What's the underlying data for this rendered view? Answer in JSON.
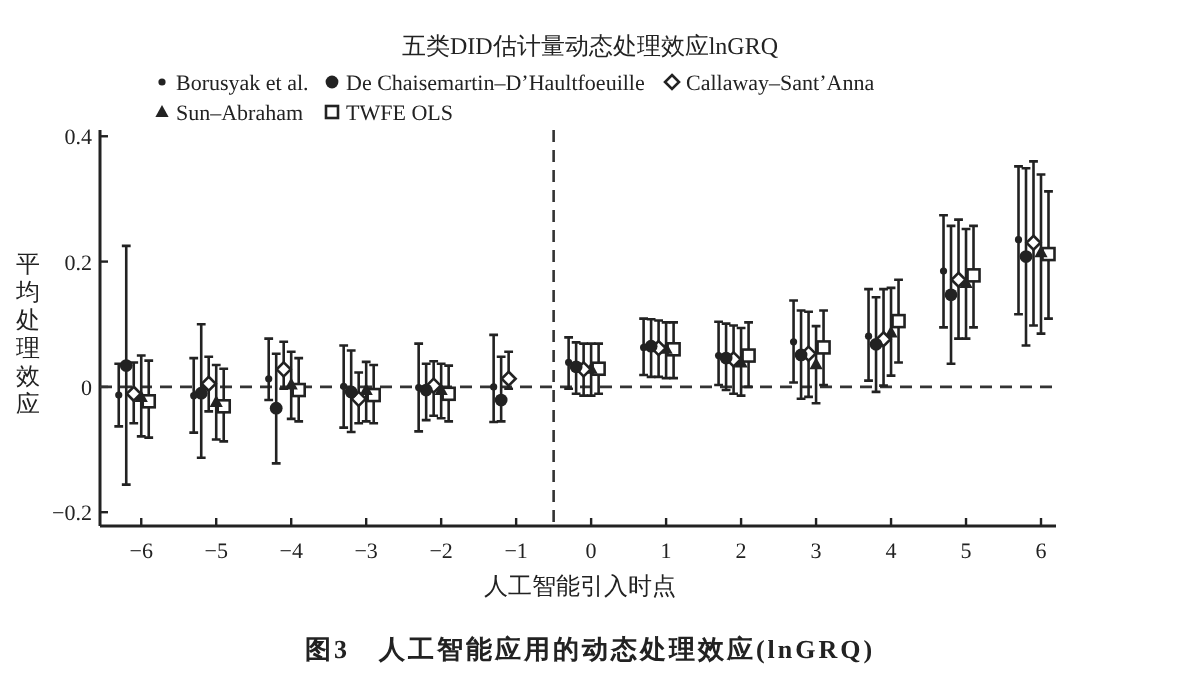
{
  "chart_data": {
    "type": "scatter",
    "title": "五类DID估计量动态处理效应lnGRQ",
    "xlabel": "人工智能引入时点",
    "ylabel": "平均处理效应",
    "annotations": [
      "图3　人工智能应用的动态处理效应(lnGRQ)"
    ],
    "xlim": [
      -6.55,
      6.2
    ],
    "xticks": [
      -6,
      -5,
      -4,
      -3,
      -2,
      -1,
      0,
      1,
      2,
      3,
      4,
      5,
      6
    ],
    "ylim": [
      -0.222,
      0.41
    ],
    "yticks": [
      -0.2,
      0,
      0.2,
      0.4
    ],
    "legend": "top",
    "ref_lines": [
      {
        "axis": "y",
        "value": 0,
        "line_style": "dashed"
      },
      {
        "axis": "x",
        "value": -0.5,
        "line_style": "dashed"
      }
    ],
    "series": [
      {
        "name": "Borusyak et al.",
        "color": "#222222",
        "marker": "dot",
        "x": [
          -6.3,
          -5.3,
          -4.3,
          -3.3,
          -2.3,
          -1.3,
          -0.3,
          0.7,
          1.7,
          2.7,
          3.7,
          4.7,
          5.7
        ],
        "values": [
          -0.013,
          -0.014,
          0.013,
          0.001,
          -0.001,
          0,
          0.039,
          0.063,
          0.05,
          0.072,
          0.081,
          0.185,
          0.235
        ],
        "errors": [
          [
            -0.063,
            0.037
          ],
          [
            -0.073,
            0.046
          ],
          [
            -0.021,
            0.077
          ],
          [
            -0.065,
            0.066
          ],
          [
            -0.071,
            0.069
          ],
          [
            -0.056,
            0.083
          ],
          [
            -0.003,
            0.079
          ],
          [
            0.019,
            0.109
          ],
          [
            0.003,
            0.104
          ],
          [
            0.007,
            0.138
          ],
          [
            0.01,
            0.156
          ],
          [
            0.095,
            0.274
          ],
          [
            0.116,
            0.352
          ]
        ]
      },
      {
        "name": "De Chaisemartin–D’Haultfoeuille",
        "color": "#222222",
        "marker": "circle",
        "x": [
          -6.2,
          -5.2,
          -4.2,
          -3.2,
          -2.2,
          -1.2,
          -0.2,
          0.8,
          1.8,
          2.8,
          3.8,
          4.8,
          5.8
        ],
        "values": [
          0.034,
          -0.01,
          -0.034,
          -0.008,
          -0.005,
          -0.021,
          0.032,
          0.065,
          0.046,
          0.051,
          0.068,
          0.147,
          0.208
        ],
        "errors": [
          [
            -0.156,
            0.225
          ],
          [
            -0.113,
            0.1
          ],
          [
            -0.122,
            0.053
          ],
          [
            -0.072,
            0.058
          ],
          [
            -0.053,
            0.037
          ],
          [
            -0.055,
            0.048
          ],
          [
            -0.011,
            0.071
          ],
          [
            0.016,
            0.108
          ],
          [
            -0.005,
            0.101
          ],
          [
            -0.019,
            0.122
          ],
          [
            -0.008,
            0.143
          ],
          [
            0.037,
            0.257
          ],
          [
            0.066,
            0.349
          ]
        ]
      },
      {
        "name": "Callaway–Sant’Anna",
        "color": "#222222",
        "marker": "diamond",
        "x": [
          -6.1,
          -5.1,
          -4.1,
          -3.1,
          -2.1,
          -1.1,
          -0.1,
          0.9,
          1.9,
          2.9,
          3.9,
          4.9,
          5.9
        ],
        "values": [
          -0.011,
          0.005,
          0.028,
          -0.019,
          0.002,
          0.013,
          0.028,
          0.062,
          0.044,
          0.053,
          0.076,
          0.171,
          0.23
        ],
        "errors": [
          [
            -0.058,
            0.039
          ],
          [
            -0.039,
            0.048
          ],
          [
            -0.003,
            0.072
          ],
          [
            -0.058,
            0.023
          ],
          [
            -0.046,
            0.041
          ],
          [
            -0.003,
            0.056
          ],
          [
            -0.014,
            0.069
          ],
          [
            0.016,
            0.106
          ],
          [
            -0.011,
            0.098
          ],
          [
            -0.016,
            0.12
          ],
          [
            0.002,
            0.156
          ],
          [
            0.077,
            0.267
          ],
          [
            0.098,
            0.36
          ]
        ]
      },
      {
        "name": "Sun–Abraham",
        "color": "#222222",
        "marker": "triangle",
        "x": [
          -6,
          -5,
          -4,
          -3,
          -2,
          0,
          1,
          2,
          3,
          4,
          5,
          6
        ],
        "values": [
          -0.016,
          -0.024,
          0.004,
          -0.005,
          -0.005,
          0.029,
          0.061,
          0.039,
          0.036,
          0.087,
          0.166,
          0.215
        ],
        "errors": [
          [
            -0.079,
            0.05
          ],
          [
            -0.084,
            0.035
          ],
          [
            -0.051,
            0.056
          ],
          [
            -0.055,
            0.04
          ],
          [
            -0.05,
            0.037
          ],
          [
            -0.014,
            0.069
          ],
          [
            0.014,
            0.103
          ],
          [
            -0.014,
            0.094
          ],
          [
            -0.026,
            0.097
          ],
          [
            0.018,
            0.158
          ],
          [
            0.077,
            0.252
          ],
          [
            0.085,
            0.339
          ]
        ]
      },
      {
        "name": "TWFE OLS",
        "color": "#222222",
        "marker": "square",
        "x": [
          -5.9,
          -4.9,
          -3.9,
          -2.9,
          -1.9,
          0.1,
          1.1,
          2.1,
          3.1,
          4.1,
          5.1,
          6.1
        ],
        "values": [
          -0.023,
          -0.031,
          -0.005,
          -0.013,
          -0.011,
          0.029,
          0.06,
          0.05,
          0.063,
          0.105,
          0.178,
          0.212
        ],
        "errors": [
          [
            -0.081,
            0.042
          ],
          [
            -0.087,
            0.029
          ],
          [
            -0.055,
            0.046
          ],
          [
            -0.058,
            0.035
          ],
          [
            -0.055,
            0.034
          ],
          [
            -0.011,
            0.069
          ],
          [
            0.014,
            0.103
          ],
          [
            0,
            0.103
          ],
          [
            0.003,
            0.122
          ],
          [
            0.039,
            0.171
          ],
          [
            0.095,
            0.257
          ],
          [
            0.109,
            0.312
          ]
        ]
      }
    ]
  }
}
